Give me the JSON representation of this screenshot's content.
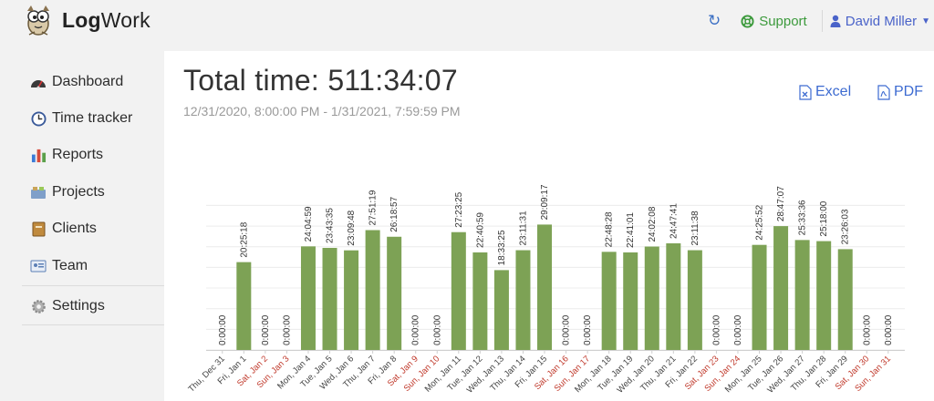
{
  "header": {
    "brand_bold": "Log",
    "brand_rest": "Work",
    "support_label": "Support",
    "user_name": "David Miller",
    "colors": {
      "support": "#3c9a3c",
      "user": "#4a63c9",
      "refresh": "#3b6fc4"
    }
  },
  "sidebar": {
    "items": [
      {
        "label": "Dashboard",
        "icon": "dashboard-gauge-icon"
      },
      {
        "label": "Time tracker",
        "icon": "clock-icon"
      },
      {
        "label": "Reports",
        "icon": "bar-chart-icon"
      },
      {
        "label": "Projects",
        "icon": "projects-icon"
      },
      {
        "label": "Clients",
        "icon": "address-book-icon"
      },
      {
        "label": "Team",
        "icon": "id-card-icon"
      },
      {
        "label": "Settings",
        "icon": "gear-icon"
      }
    ]
  },
  "main": {
    "title": "Total time: 511:34:07",
    "subtitle": "12/31/2020, 8:00:00 PM - 1/31/2021, 7:59:59 PM",
    "export_excel": "Excel",
    "export_pdf": "PDF"
  },
  "chart_data": {
    "type": "bar",
    "bar_color": "#7da255",
    "weekend_label_color": "#c0392b",
    "ylim": [
      0,
      36
    ],
    "grid": true,
    "categories": [
      "Thu, Dec 31",
      "Fri, Jan 1",
      "Sat, Jan 2",
      "Sun, Jan 3",
      "Mon, Jan 4",
      "Tue, Jan 5",
      "Wed, Jan 6",
      "Thu, Jan 7",
      "Fri, Jan 8",
      "Sat, Jan 9",
      "Sun, Jan 10",
      "Mon, Jan 11",
      "Tue, Jan 12",
      "Wed, Jan 13",
      "Thu, Jan 14",
      "Fri, Jan 15",
      "Sat, Jan 16",
      "Sun, Jan 17",
      "Mon, Jan 18",
      "Tue, Jan 19",
      "Wed, Jan 20",
      "Thu, Jan 21",
      "Fri, Jan 22",
      "Sat, Jan 23",
      "Sun, Jan 24",
      "Mon, Jan 25",
      "Tue, Jan 26",
      "Wed, Jan 27",
      "Thu, Jan 28",
      "Fri, Jan 29",
      "Sat, Jan 30",
      "Sun, Jan 31"
    ],
    "weekend": [
      false,
      false,
      true,
      true,
      false,
      false,
      false,
      false,
      false,
      true,
      true,
      false,
      false,
      false,
      false,
      false,
      true,
      true,
      false,
      false,
      false,
      false,
      false,
      true,
      true,
      false,
      false,
      false,
      false,
      false,
      true,
      true
    ],
    "labels": [
      "0:00:00",
      "20:25:18",
      "0:00:00",
      "0:00:00",
      "24:04:59",
      "23:43:35",
      "23:09:48",
      "27:51:19",
      "26:18:57",
      "0:00:00",
      "0:00:00",
      "27:23:25",
      "22:40:59",
      "18:33:25",
      "23:11:31",
      "29:09:17",
      "0:00:00",
      "0:00:00",
      "22:48:28",
      "22:41:01",
      "24:02:08",
      "24:47:41",
      "23:11:38",
      "0:00:00",
      "0:00:00",
      "24:25:52",
      "28:47:07",
      "25:33:36",
      "25:18:00",
      "23:26:03",
      "0:00:00",
      "0:00:00"
    ],
    "values": [
      0,
      20.42,
      0,
      0,
      24.08,
      23.73,
      23.16,
      27.86,
      26.32,
      0,
      0,
      27.39,
      22.68,
      18.56,
      23.19,
      29.15,
      0,
      0,
      22.81,
      22.68,
      24.04,
      24.79,
      23.19,
      0,
      0,
      24.43,
      28.79,
      25.56,
      25.3,
      23.43,
      0,
      0
    ]
  }
}
